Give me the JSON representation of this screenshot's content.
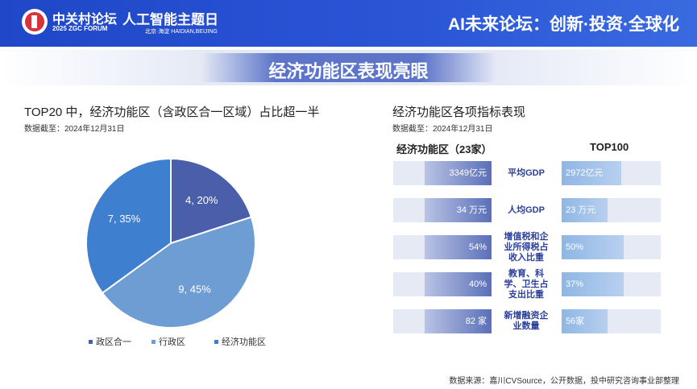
{
  "header": {
    "logo_name": "中关村论坛",
    "logo_sub": "2025 ZGC FORUM",
    "event": "人工智能主题日",
    "location": "北京·海淀 HAIDIAN,BEIJING",
    "slogan": "AI未来论坛：创新·投资·全球化"
  },
  "slide_title": "经济功能区表现亮眼",
  "chart_data": [
    {
      "type": "pie",
      "title": "TOP20 中，经济功能区（含政区合一区域）占比超一半",
      "subtitle": "数据截至：2024年12月31日",
      "categories": [
        "政区合一",
        "行政区",
        "经济功能区"
      ],
      "values": [
        4,
        9,
        7
      ],
      "value_labels": [
        "4, 20%",
        "9, 45%",
        "7, 35%"
      ],
      "colors": [
        "#4b5ea9",
        "#6e9dd3",
        "#3e7fd0"
      ]
    },
    {
      "type": "comparison",
      "title": "经济功能区各项指标表现",
      "subtitle": "数据截至：2024年12月31日",
      "categories": [
        "平均GDP",
        "人均GDP",
        "增值税和企业所得税占收入比重",
        "教育、科学、卫生占支出比重",
        "新增融资企业数量"
      ],
      "series": [
        {
          "name": "经济功能区（23家）",
          "color": "#5a6fb8",
          "values": [
            3349,
            34,
            54,
            40,
            82
          ],
          "value_labels": [
            "3349亿元",
            "34 万元",
            "54%",
            "40%",
            "82 家"
          ]
        },
        {
          "name": "TOP100",
          "color": "#8fb6e4",
          "values": [
            2972,
            23,
            50,
            37,
            56
          ],
          "value_labels": [
            "2972亿元",
            "23 万元",
            "50%",
            "37%",
            "56家"
          ]
        }
      ]
    }
  ],
  "source": "数据来源：嘉川CVSource，公开数据，投中研究咨询事业部整理"
}
